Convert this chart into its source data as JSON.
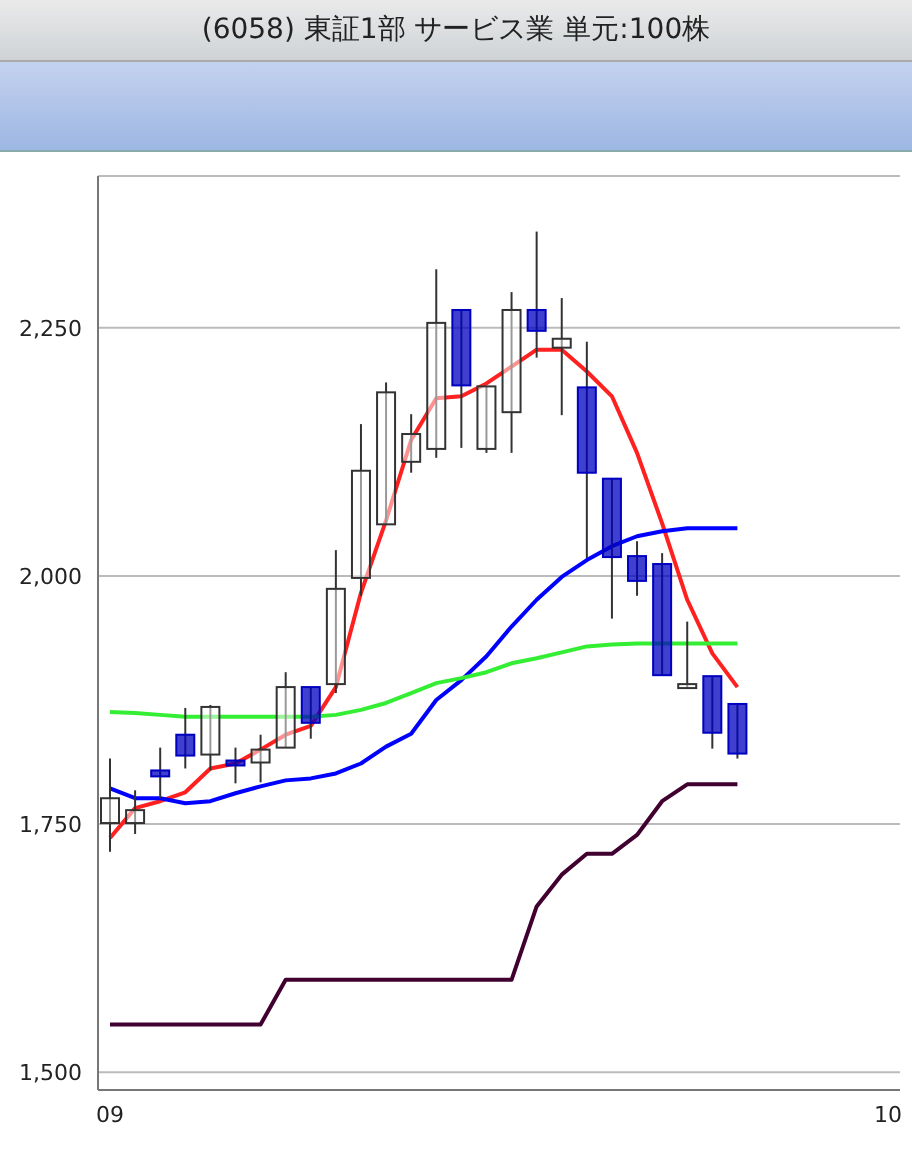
{
  "chart_data": {
    "type": "candlestick",
    "title": "(6058) 東証1部 サービス業 単元:100株",
    "categories": [
      "09",
      null,
      null,
      null,
      null,
      null,
      null,
      null,
      null,
      null,
      null,
      null,
      null,
      null,
      null,
      null,
      null,
      null,
      null,
      null,
      null,
      null,
      null,
      null,
      null,
      null,
      null,
      null,
      null,
      null,
      null,
      "10"
    ],
    "ohlc": [
      [
        1751,
        1816,
        1722,
        1776
      ],
      [
        1751,
        1784,
        1740,
        1764
      ],
      [
        1804,
        1827,
        1776,
        1798
      ],
      [
        1840,
        1867,
        1806,
        1819
      ],
      [
        1820,
        1870,
        1804,
        1868
      ],
      [
        1814,
        1827,
        1791,
        1809
      ],
      [
        1812,
        1840,
        1792,
        1825
      ],
      [
        1827,
        1903,
        1827,
        1888
      ],
      [
        1888,
        1888,
        1836,
        1852
      ],
      [
        1891,
        2026,
        1882,
        1987
      ],
      [
        1998,
        2153,
        1980,
        2106
      ],
      [
        2052,
        2195,
        2052,
        2185
      ],
      [
        2115,
        2163,
        2104,
        2143
      ],
      [
        2128,
        2309,
        2119,
        2255
      ],
      [
        2268,
        2268,
        2129,
        2192
      ],
      [
        2128,
        2191,
        2124,
        2191
      ],
      [
        2165,
        2286,
        2124,
        2268
      ],
      [
        2268,
        2347,
        2220,
        2247
      ],
      [
        2230,
        2280,
        2162,
        2239
      ],
      [
        2190,
        2236,
        2018,
        2104
      ],
      [
        2098,
        2098,
        1957,
        2019
      ],
      [
        2020,
        2035,
        1980,
        1995
      ],
      [
        2012,
        2023,
        1900,
        1900
      ],
      [
        1887,
        1954,
        1887,
        1891
      ],
      [
        1899,
        1899,
        1826,
        1842
      ],
      [
        1871,
        1871,
        1816,
        1821
      ],
      null,
      null,
      null,
      null,
      null,
      null
    ],
    "colors": [
      "#ffffff",
      "#ffffff",
      "#0000c0",
      "#0000c0",
      "#ffffff",
      "#0000c0",
      "#ffffff",
      "#ffffff",
      "#0000c0",
      "#ffffff",
      "#ffffff",
      "#ffffff",
      "#ffffff",
      "#ffffff",
      "#0000c0",
      "#ffffff",
      "#ffffff",
      "#0000c0",
      "#ffffff",
      "#0000c0",
      "#0000c0",
      "#0000c0",
      "#0000c0",
      "#ffffff",
      "#0000c0",
      "#0000c0",
      null,
      null,
      null,
      null,
      null,
      null
    ],
    "series": [
      {
        "type": "line",
        "color": "#ff2020",
        "values": [
          1736,
          1766,
          1773,
          1782,
          1806,
          1811,
          1825,
          1840,
          1849,
          1888,
          1983,
          2056,
          2137,
          2179,
          2181,
          2194,
          2211,
          2228,
          2228,
          2206,
          2181,
          2124,
          2053,
          1976,
          1922,
          1888,
          null,
          null,
          null,
          null,
          null,
          null
        ]
      },
      {
        "type": "line",
        "color": "#0000ff",
        "values": [
          1786,
          1776,
          1776,
          1771,
          1773,
          1781,
          1788,
          1794,
          1796,
          1801,
          1811,
          1828,
          1841,
          1875,
          1895,
          1919,
          1949,
          1976,
          1999,
          2016,
          2030,
          2040,
          2045,
          2048,
          2048,
          2048,
          null,
          null,
          null,
          null,
          null,
          null
        ]
      },
      {
        "type": "line",
        "color": "#33ee33",
        "values": [
          1863,
          1862,
          1860,
          1858,
          1858,
          1858,
          1858,
          1858,
          1858,
          1860,
          1865,
          1872,
          1882,
          1892,
          1897,
          1903,
          1912,
          1917,
          1923,
          1929,
          1931,
          1932,
          1932,
          1932,
          1932,
          1932,
          null,
          null,
          null,
          null,
          null,
          null
        ]
      },
      {
        "type": "line",
        "color": "#400030",
        "values": [
          1548,
          1548,
          1548,
          1548,
          1548,
          1548,
          1548,
          1593,
          1593,
          1593,
          1593,
          1593,
          1593,
          1593,
          1593,
          1593,
          1593,
          1667,
          1699,
          1720,
          1720,
          1739,
          1773,
          1790,
          1790,
          1790,
          null,
          null,
          null,
          null,
          null,
          null
        ]
      }
    ],
    "ylim": [
      1482,
      2403
    ],
    "yticks": [
      {
        "value": 1500,
        "label": "1,500"
      },
      {
        "value": 1750,
        "label": "1,750"
      },
      {
        "value": 2000,
        "label": "2,000"
      },
      {
        "value": 2250,
        "label": "2,250"
      }
    ],
    "grid": "y"
  }
}
